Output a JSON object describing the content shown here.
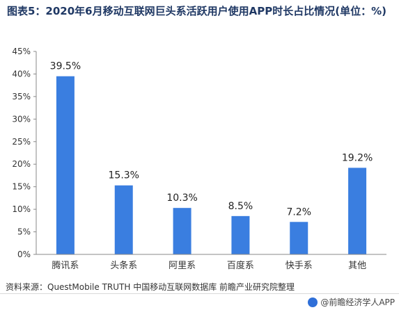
{
  "title": "图表5：2020年6月移动互联网巨头系活跃用户使用APP时长占比情况(单位：%)",
  "source": "资料来源：QuestMobile TRUTH 中国移动互联网数据库 前瞻产业研究院整理",
  "brand": "@前瞻经济学人APP",
  "brand_icon": "logo-icon",
  "colors": {
    "bar": "#3a7ee0",
    "axis": "#888888",
    "grid": "#e6e6e6"
  },
  "chart_data": {
    "type": "bar",
    "title": "",
    "xlabel": "",
    "ylabel": "",
    "categories": [
      "腾讯系",
      "头条系",
      "阿里系",
      "百度系",
      "快手系",
      "其他"
    ],
    "values": [
      39.5,
      15.3,
      10.3,
      8.5,
      7.2,
      19.2
    ],
    "value_labels": [
      "39.5%",
      "15.3%",
      "10.3%",
      "8.5%",
      "7.2%",
      "19.2%"
    ],
    "yticks": [
      0,
      5,
      10,
      15,
      20,
      25,
      30,
      35,
      40,
      45
    ],
    "ytick_labels": [
      "0%",
      "5%",
      "10%",
      "15%",
      "20%",
      "25%",
      "30%",
      "35%",
      "40%",
      "45%"
    ],
    "ylim": [
      0,
      45
    ],
    "grid": false,
    "legend": "none"
  }
}
